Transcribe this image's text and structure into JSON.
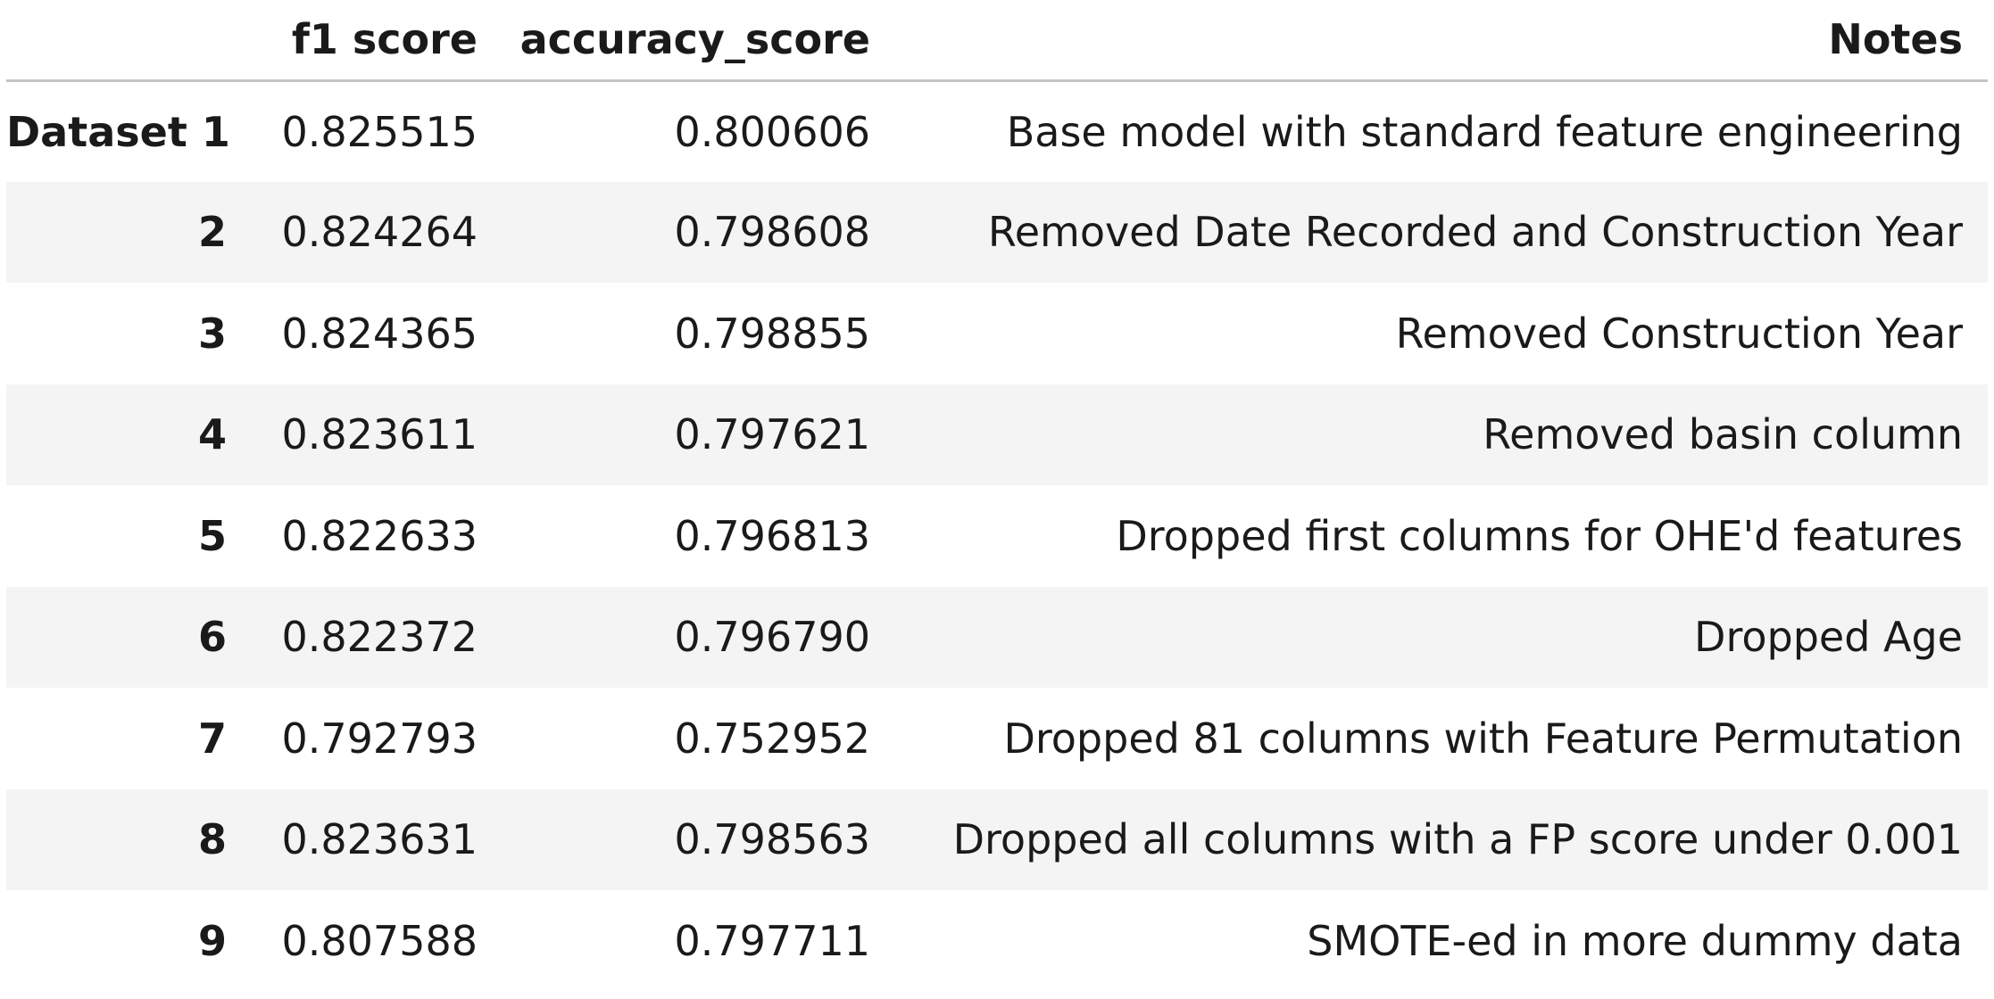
{
  "table": {
    "columns": {
      "index": "",
      "f1": "f1 score",
      "accuracy": "accuracy_score",
      "notes": "Notes"
    },
    "rows": [
      {
        "index": "Dataset 1",
        "f1": "0.825515",
        "accuracy": "0.800606",
        "notes": "Base model with standard feature engineering"
      },
      {
        "index": "2",
        "f1": "0.824264",
        "accuracy": "0.798608",
        "notes": "Removed Date Recorded and Construction Year"
      },
      {
        "index": "3",
        "f1": "0.824365",
        "accuracy": "0.798855",
        "notes": "Removed Construction Year"
      },
      {
        "index": "4",
        "f1": "0.823611",
        "accuracy": "0.797621",
        "notes": "Removed basin column"
      },
      {
        "index": "5",
        "f1": "0.822633",
        "accuracy": "0.796813",
        "notes": "Dropped first columns for OHE'd features"
      },
      {
        "index": "6",
        "f1": "0.822372",
        "accuracy": "0.796790",
        "notes": "Dropped Age"
      },
      {
        "index": "7",
        "f1": "0.792793",
        "accuracy": "0.752952",
        "notes": "Dropped 81 columns with Feature Permutation"
      },
      {
        "index": "8",
        "f1": "0.823631",
        "accuracy": "0.798563",
        "notes": "Dropped all columns with a FP score under 0.001"
      },
      {
        "index": "9",
        "f1": "0.807588",
        "accuracy": "0.797711",
        "notes": "SMOTE-ed in more dummy data"
      }
    ]
  }
}
